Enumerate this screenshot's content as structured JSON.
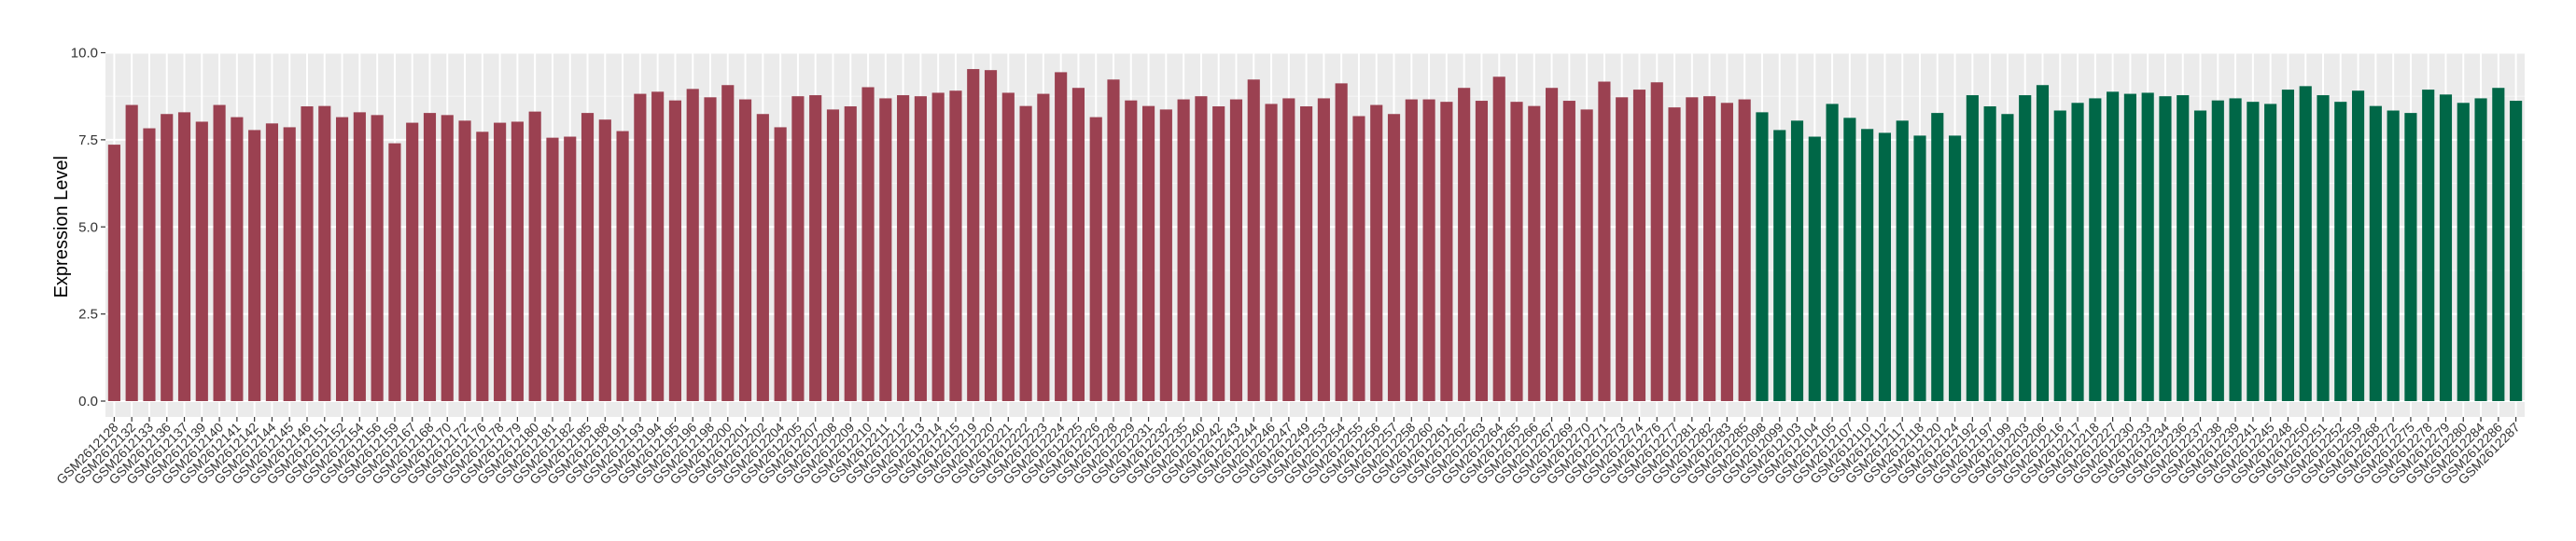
{
  "chart_data": {
    "type": "bar",
    "title": "",
    "xlabel": "",
    "ylabel": "Expression Level",
    "ylim": [
      -0.45,
      10.0
    ],
    "yticks": [
      "0.0",
      "2.5",
      "5.0",
      "7.5",
      "10.0"
    ],
    "grid": true,
    "legend": "none",
    "group_colors": {
      "a": "#9B4151",
      "b": "#006747"
    },
    "panel_background": "#EBEBEB",
    "categories": [
      "GSM2612128",
      "GSM2612132",
      "GSM2612133",
      "GSM2612136",
      "GSM2612137",
      "GSM2612139",
      "GSM2612140",
      "GSM2612141",
      "GSM2612142",
      "GSM2612144",
      "GSM2612145",
      "GSM2612146",
      "GSM2612151",
      "GSM2612152",
      "GSM2612154",
      "GSM2612156",
      "GSM2612159",
      "GSM2612167",
      "GSM2612168",
      "GSM2612170",
      "GSM2612172",
      "GSM2612176",
      "GSM2612178",
      "GSM2612179",
      "GSM2612180",
      "GSM2612181",
      "GSM2612182",
      "GSM2612185",
      "GSM2612188",
      "GSM2612191",
      "GSM2612193",
      "GSM2612194",
      "GSM2612195",
      "GSM2612196",
      "GSM2612198",
      "GSM2612200",
      "GSM2612201",
      "GSM2612202",
      "GSM2612204",
      "GSM2612205",
      "GSM2612207",
      "GSM2612208",
      "GSM2612209",
      "GSM2612210",
      "GSM2612211",
      "GSM2612212",
      "GSM2612213",
      "GSM2612214",
      "GSM2612215",
      "GSM2612219",
      "GSM2612220",
      "GSM2612221",
      "GSM2612222",
      "GSM2612223",
      "GSM2612224",
      "GSM2612225",
      "GSM2612226",
      "GSM2612228",
      "GSM2612229",
      "GSM2612231",
      "GSM2612232",
      "GSM2612235",
      "GSM2612240",
      "GSM2612242",
      "GSM2612243",
      "GSM2612244",
      "GSM2612246",
      "GSM2612247",
      "GSM2612249",
      "GSM2612253",
      "GSM2612254",
      "GSM2612255",
      "GSM2612256",
      "GSM2612257",
      "GSM2612258",
      "GSM2612260",
      "GSM2612261",
      "GSM2612262",
      "GSM2612263",
      "GSM2612264",
      "GSM2612265",
      "GSM2612266",
      "GSM2612267",
      "GSM2612269",
      "GSM2612270",
      "GSM2612271",
      "GSM2612273",
      "GSM2612274",
      "GSM2612276",
      "GSM2612277",
      "GSM2612281",
      "GSM2612282",
      "GSM2612283",
      "GSM2612285",
      "GSM2612098",
      "GSM2612099",
      "GSM2612103",
      "GSM2612104",
      "GSM2612105",
      "GSM2612107",
      "GSM2612110",
      "GSM2612112",
      "GSM2612117",
      "GSM2612118",
      "GSM2612120",
      "GSM2612124",
      "GSM2612192",
      "GSM2612197",
      "GSM2612199",
      "GSM2612203",
      "GSM2612206",
      "GSM2612216",
      "GSM2612217",
      "GSM2612218",
      "GSM2612227",
      "GSM2612230",
      "GSM2612233",
      "GSM2612234",
      "GSM2612236",
      "GSM2612237",
      "GSM2612238",
      "GSM2612239",
      "GSM2612241",
      "GSM2612245",
      "GSM2612248",
      "GSM2612250",
      "GSM2612251",
      "GSM2612252",
      "GSM2612259",
      "GSM2612268",
      "GSM2612272",
      "GSM2612275",
      "GSM2612278",
      "GSM2612279",
      "GSM2612280",
      "GSM2612284",
      "GSM2612286",
      "GSM2612287"
    ],
    "values": [
      7.36,
      8.5,
      7.83,
      8.24,
      8.29,
      8.02,
      8.5,
      8.15,
      7.78,
      7.97,
      7.86,
      8.46,
      8.47,
      8.15,
      8.29,
      8.21,
      7.4,
      7.99,
      8.27,
      8.21,
      8.05,
      7.73,
      7.99,
      8.02,
      8.31,
      7.56,
      7.59,
      8.27,
      8.08,
      7.75,
      8.82,
      8.88,
      8.63,
      8.96,
      8.72,
      9.07,
      8.66,
      8.24,
      7.86,
      8.75,
      8.78,
      8.37,
      8.46,
      9.01,
      8.69,
      8.78,
      8.75,
      8.85,
      8.91,
      9.53,
      9.5,
      8.85,
      8.47,
      8.82,
      9.44,
      8.99,
      8.15,
      9.23,
      8.63,
      8.47,
      8.37,
      8.66,
      8.75,
      8.46,
      8.66,
      9.23,
      8.53,
      8.69,
      8.46,
      8.69,
      9.12,
      8.18,
      8.5,
      8.24,
      8.66,
      8.66,
      8.59,
      8.99,
      8.62,
      9.31,
      8.59,
      8.47,
      8.99,
      8.62,
      8.37,
      9.17,
      8.72,
      8.94,
      9.15,
      8.43,
      8.72,
      8.75,
      8.56,
      8.66,
      8.29,
      7.78,
      8.05,
      7.59,
      8.53,
      8.13,
      7.81,
      7.7,
      8.05,
      7.62,
      8.27,
      7.62,
      8.78,
      8.46,
      8.24,
      8.78,
      9.07,
      8.34,
      8.56,
      8.69,
      8.88,
      8.82,
      8.85,
      8.75,
      8.78,
      8.34,
      8.63,
      8.69,
      8.59,
      8.53,
      8.94,
      9.04,
      8.78,
      8.59,
      8.91,
      8.47,
      8.34,
      8.27,
      8.94,
      8.8,
      8.56,
      8.69,
      8.99,
      8.62
    ],
    "group_counts": {
      "a": 94,
      "b": 44
    }
  }
}
